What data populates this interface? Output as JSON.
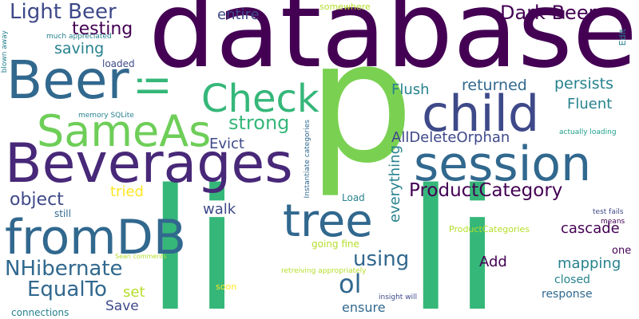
{
  "palette": {
    "dark_purple": "#440154",
    "purple": "#482878",
    "indigo": "#3e4989",
    "blue": "#31688e",
    "teal": "#26828e",
    "cyan_green": "#1f9e89",
    "green": "#35b779",
    "lime": "#6ece58",
    "yellow_green": "#b5de2b",
    "yellow": "#fde725"
  },
  "words": [
    {
      "text": "database",
      "color": "#440154"
    },
    {
      "text": "p",
      "color": "#7ad151"
    },
    {
      "text": "li",
      "color": "#35b779"
    },
    {
      "text": "li",
      "color": "#35b779"
    },
    {
      "text": "Beverages",
      "color": "#482878"
    },
    {
      "text": "session",
      "color": "#31688e"
    },
    {
      "text": "Beer",
      "color": "#31688e"
    },
    {
      "text": "child",
      "color": "#3e4989"
    },
    {
      "text": "fromDB",
      "color": "#31688e"
    },
    {
      "text": "SameAs",
      "color": "#6ece58"
    },
    {
      "text": "tree",
      "color": "#31688e"
    },
    {
      "text": "Check",
      "color": "#35b779"
    },
    {
      "text": "li",
      "color": "#35b779"
    },
    {
      "text": "Light Beer",
      "color": "#3e4989"
    },
    {
      "text": "Dark Beer",
      "color": "#440154"
    },
    {
      "text": "ProductCategory",
      "color": "#440154"
    },
    {
      "text": "NHibernate",
      "color": "#31688e"
    },
    {
      "text": "EqualTo",
      "color": "#31688e"
    },
    {
      "text": "using",
      "color": "#31688e"
    },
    {
      "text": "object",
      "color": "#3e4989"
    },
    {
      "text": "ol",
      "color": "#31688e"
    },
    {
      "text": "strong",
      "color": "#35b779"
    },
    {
      "text": "testing",
      "color": "#440154"
    },
    {
      "text": "saving",
      "color": "#26828e"
    },
    {
      "text": "AllDeleteOrphan",
      "color": "#3e4989"
    },
    {
      "text": "returned",
      "color": "#31688e"
    },
    {
      "text": "persists",
      "color": "#26828e"
    },
    {
      "text": "Flush",
      "color": "#26828e"
    },
    {
      "text": "Fluent",
      "color": "#26828e"
    },
    {
      "text": "entire",
      "color": "#3e4989"
    },
    {
      "text": "Evict",
      "color": "#3e4989"
    },
    {
      "text": "everything",
      "color": "#26828e"
    },
    {
      "text": "walk",
      "color": "#3e4989"
    },
    {
      "text": "tried",
      "color": "#fde725"
    },
    {
      "text": "cascade",
      "color": "#440154"
    },
    {
      "text": "mapping",
      "color": "#26828e"
    },
    {
      "text": "Add",
      "color": "#440154"
    },
    {
      "text": "Save",
      "color": "#3e4989"
    },
    {
      "text": "set",
      "color": "#b5de2b"
    },
    {
      "text": "ensure",
      "color": "#31688e"
    },
    {
      "text": "response",
      "color": "#31688e"
    },
    {
      "text": "closed",
      "color": "#26828e"
    },
    {
      "text": "one",
      "color": "#440154"
    },
    {
      "text": "still",
      "color": "#31688e"
    },
    {
      "text": "Load",
      "color": "#26828e"
    },
    {
      "text": "loaded",
      "color": "#3e4989"
    },
    {
      "text": "going fine",
      "color": "#b5de2b"
    },
    {
      "text": "ProductCategories",
      "color": "#b5de2b"
    },
    {
      "text": "somewhere",
      "color": "#b5de2b"
    },
    {
      "text": "much appreciated",
      "color": "#26828e"
    },
    {
      "text": "memory SQLite",
      "color": "#26828e"
    },
    {
      "text": "retreiving appropriately",
      "color": "#b5de2b"
    },
    {
      "text": "insight will",
      "color": "#3e4989"
    },
    {
      "text": "soon",
      "color": "#fde725"
    },
    {
      "text": "connections",
      "color": "#26828e"
    },
    {
      "text": "test fails",
      "color": "#3e4989"
    },
    {
      "text": "means",
      "color": "#440154"
    },
    {
      "text": "actually loading",
      "color": "#1f9e89"
    },
    {
      "text": "Edit",
      "color": "#26828e"
    },
    {
      "text": "blown away",
      "color": "#26828e"
    },
    {
      "text": "Instantiate categories",
      "color": "#31688e"
    },
    {
      "text": "Sean comments",
      "color": "#b5de2b"
    }
  ]
}
